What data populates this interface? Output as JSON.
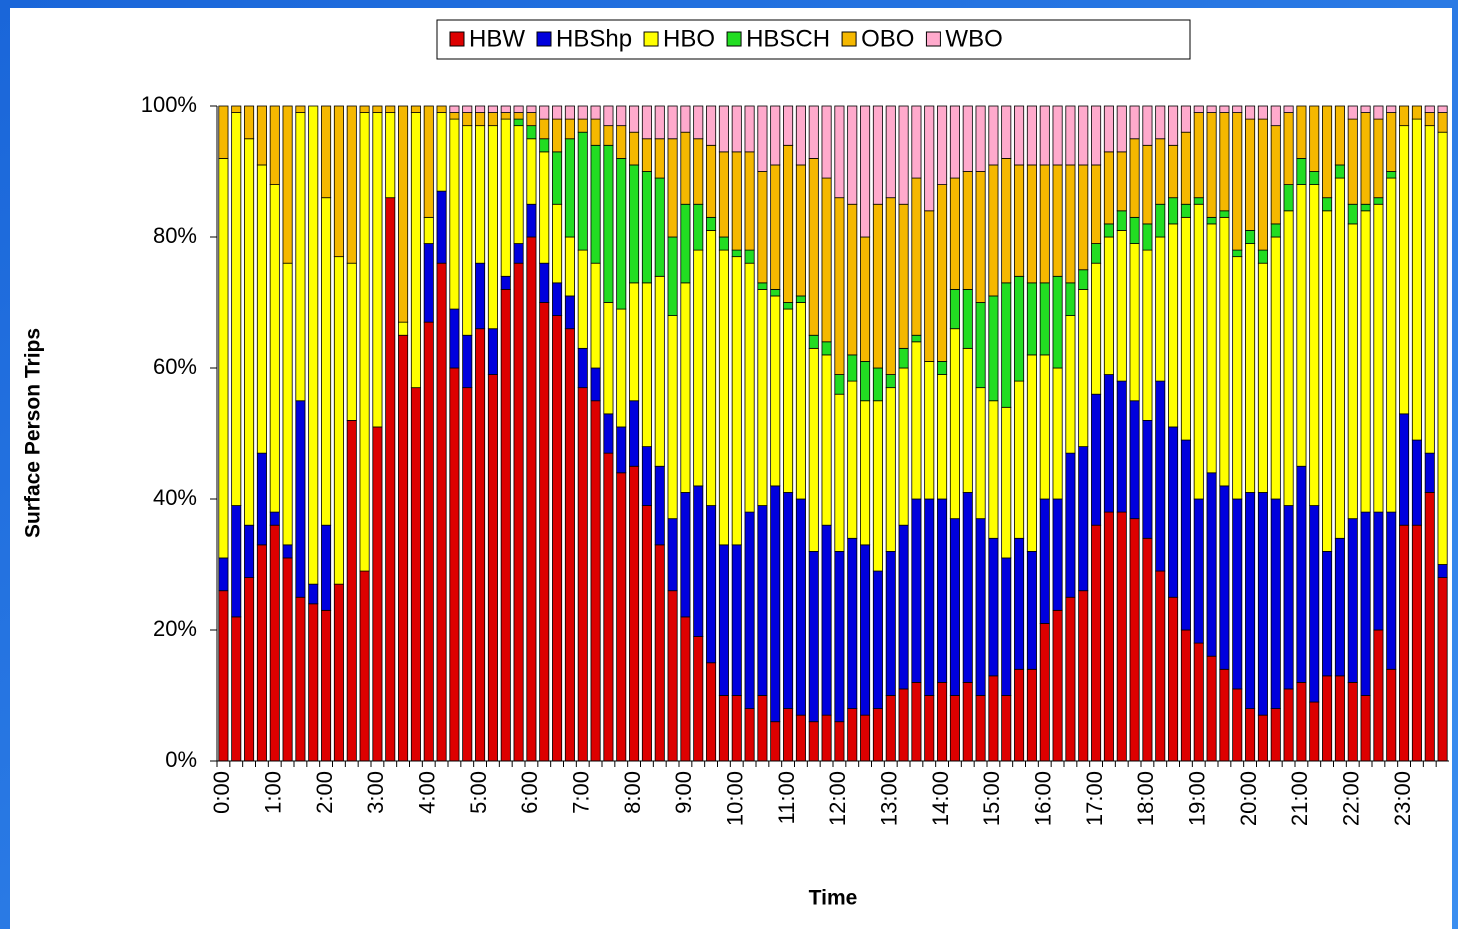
{
  "chart_data": {
    "type": "stacked_bar_100",
    "y_label": "Surface Person Trips",
    "x_label": "Time",
    "categories": [
      "0:00",
      null,
      null,
      null,
      "1:00",
      null,
      null,
      null,
      "2:00",
      null,
      null,
      null,
      "3:00",
      null,
      null,
      null,
      "4:00",
      null,
      null,
      null,
      "5:00",
      null,
      null,
      null,
      "6:00",
      null,
      null,
      null,
      "7:00",
      null,
      null,
      null,
      "8:00",
      null,
      null,
      null,
      "9:00",
      null,
      null,
      null,
      "10:00",
      null,
      null,
      null,
      "11:00",
      null,
      null,
      null,
      "12:00",
      null,
      null,
      null,
      "13:00",
      null,
      null,
      null,
      "14:00",
      null,
      null,
      null,
      "15:00",
      null,
      null,
      null,
      "16:00",
      null,
      null,
      null,
      "17:00",
      null,
      null,
      null,
      "18:00",
      null,
      null,
      null,
      "19:00",
      null,
      null,
      null,
      "20:00",
      null,
      null,
      null,
      "21:00",
      null,
      null,
      null,
      "22:00",
      null,
      null,
      null,
      "23:00",
      null,
      null,
      null
    ],
    "series": [
      {
        "name": "HBW",
        "color": "#dd0000",
        "values": [
          26,
          22,
          28,
          33,
          36,
          31,
          25,
          24,
          23,
          27,
          52,
          29,
          51,
          86,
          65,
          57,
          67,
          76,
          60,
          57,
          66,
          59,
          72,
          76,
          80,
          70,
          68,
          66,
          57,
          55,
          47,
          44,
          45,
          39,
          33,
          26,
          22,
          19,
          15,
          10,
          10,
          8,
          10,
          6,
          8,
          7,
          6,
          7,
          6,
          8,
          7,
          8,
          10,
          11,
          12,
          10,
          12,
          10,
          12,
          10,
          13,
          10,
          14,
          14,
          21,
          23,
          25,
          26,
          36,
          38,
          38,
          37,
          34,
          29,
          25,
          20,
          18,
          16,
          14,
          11,
          8,
          7,
          8,
          11,
          12,
          9,
          13,
          13,
          12,
          10,
          20,
          14,
          36,
          36,
          41,
          28
        ]
      },
      {
        "name": "HBShp",
        "color": "#0000dd",
        "values": [
          5,
          17,
          8,
          14,
          2,
          2,
          30,
          3,
          13,
          0,
          0,
          0,
          0,
          0,
          0,
          0,
          12,
          11,
          9,
          8,
          10,
          7,
          2,
          3,
          5,
          6,
          5,
          5,
          6,
          5,
          6,
          7,
          10,
          9,
          12,
          11,
          19,
          23,
          24,
          23,
          23,
          30,
          29,
          36,
          33,
          33,
          26,
          29,
          26,
          26,
          26,
          21,
          22,
          25,
          28,
          30,
          28,
          27,
          29,
          27,
          21,
          21,
          20,
          18,
          19,
          17,
          22,
          22,
          20,
          21,
          20,
          18,
          18,
          29,
          26,
          29,
          22,
          28,
          28,
          29,
          33,
          34,
          32,
          28,
          33,
          30,
          19,
          21,
          25,
          28,
          18,
          24,
          17,
          13,
          6,
          2
        ]
      },
      {
        "name": "HBO",
        "color": "#ffff00",
        "values": [
          61,
          60,
          59,
          44,
          50,
          43,
          44,
          73,
          50,
          50,
          24,
          70,
          48,
          13,
          2,
          42,
          4,
          12,
          29,
          32,
          21,
          31,
          24,
          18,
          10,
          17,
          12,
          9,
          15,
          16,
          17,
          18,
          18,
          25,
          29,
          31,
          32,
          36,
          42,
          45,
          44,
          38,
          33,
          29,
          28,
          30,
          31,
          26,
          24,
          24,
          22,
          26,
          25,
          24,
          24,
          21,
          19,
          29,
          22,
          20,
          21,
          23,
          24,
          30,
          22,
          20,
          21,
          24,
          20,
          21,
          23,
          24,
          26,
          22,
          31,
          34,
          45,
          38,
          41,
          37,
          38,
          35,
          40,
          45,
          43,
          49,
          52,
          55,
          45,
          46,
          47,
          51,
          44,
          49,
          50,
          66
        ]
      },
      {
        "name": "HBSCH",
        "color": "#22dd22",
        "values": [
          0,
          0,
          0,
          0,
          0,
          0,
          0,
          0,
          0,
          0,
          0,
          0,
          0,
          0,
          0,
          0,
          0,
          0,
          0,
          0,
          0,
          0,
          0,
          1,
          2,
          2,
          8,
          15,
          18,
          18,
          24,
          23,
          18,
          17,
          15,
          12,
          12,
          7,
          2,
          2,
          1,
          2,
          1,
          1,
          1,
          1,
          2,
          2,
          3,
          4,
          6,
          5,
          2,
          3,
          1,
          0,
          2,
          6,
          9,
          13,
          16,
          19,
          16,
          11,
          11,
          14,
          5,
          3,
          3,
          2,
          3,
          4,
          4,
          5,
          4,
          2,
          1,
          1,
          1,
          1,
          2,
          2,
          2,
          4,
          4,
          2,
          2,
          2,
          3,
          1,
          1,
          1,
          0,
          0,
          0,
          0
        ]
      },
      {
        "name": "OBO",
        "color": "#f5b800",
        "values": [
          8,
          1,
          5,
          9,
          12,
          24,
          1,
          0,
          14,
          23,
          24,
          1,
          1,
          1,
          33,
          1,
          17,
          1,
          1,
          2,
          2,
          2,
          1,
          1,
          2,
          3,
          5,
          3,
          2,
          4,
          3,
          5,
          5,
          5,
          6,
          15,
          11,
          10,
          11,
          13,
          15,
          15,
          17,
          19,
          24,
          20,
          27,
          25,
          27,
          23,
          19,
          25,
          27,
          22,
          24,
          23,
          27,
          17,
          18,
          20,
          20,
          19,
          17,
          18,
          18,
          17,
          18,
          16,
          12,
          11,
          9,
          12,
          12,
          10,
          8,
          11,
          13,
          16,
          15,
          21,
          17,
          20,
          15,
          11,
          8,
          10,
          14,
          9,
          13,
          14,
          12,
          9,
          3,
          2,
          2,
          3
        ]
      },
      {
        "name": "WBO",
        "color": "#ffaacc",
        "values": [
          0,
          0,
          0,
          0,
          0,
          0,
          0,
          0,
          0,
          0,
          0,
          0,
          0,
          0,
          0,
          0,
          0,
          0,
          1,
          1,
          1,
          1,
          1,
          1,
          1,
          2,
          2,
          2,
          2,
          2,
          3,
          3,
          4,
          5,
          5,
          5,
          4,
          5,
          6,
          7,
          7,
          7,
          10,
          9,
          6,
          9,
          8,
          11,
          14,
          15,
          20,
          15,
          14,
          15,
          11,
          16,
          12,
          11,
          10,
          10,
          9,
          8,
          9,
          9,
          9,
          9,
          9,
          9,
          9,
          7,
          7,
          5,
          6,
          5,
          6,
          4,
          1,
          1,
          1,
          1,
          2,
          2,
          3,
          1,
          0,
          0,
          0,
          0,
          2,
          1,
          2,
          1,
          0,
          0,
          1,
          1
        ]
      }
    ],
    "ylim": [
      0,
      100
    ],
    "yticks": [
      {
        "value": 0,
        "label": "0%"
      },
      {
        "value": 20,
        "label": "20%"
      },
      {
        "value": 40,
        "label": "40%"
      },
      {
        "value": 60,
        "label": "60%"
      },
      {
        "value": 80,
        "label": "80%"
      },
      {
        "value": 100,
        "label": "100%"
      }
    ],
    "grid": false,
    "legend": "top"
  }
}
